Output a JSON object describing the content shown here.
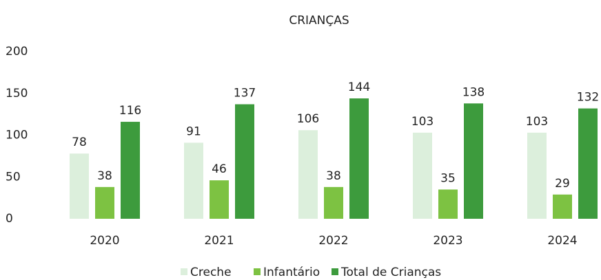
{
  "chart_data": {
    "type": "bar",
    "title": "CRIANÇAS",
    "categories": [
      "2020",
      "2021",
      "2022",
      "2023",
      "2024"
    ],
    "series": [
      {
        "name": "Creche",
        "color": "#dcefdc",
        "values": [
          78,
          91,
          106,
          103,
          103
        ]
      },
      {
        "name": "Infantário",
        "color": "#7dc242",
        "values": [
          38,
          46,
          38,
          35,
          29
        ]
      },
      {
        "name": "Total de Crianças",
        "color": "#3d9b3d",
        "values": [
          116,
          137,
          144,
          138,
          132
        ]
      }
    ],
    "ylim": [
      0,
      200
    ],
    "yticks": [
      0,
      50,
      100,
      150,
      200
    ],
    "grid": false,
    "legend": "bottom"
  }
}
